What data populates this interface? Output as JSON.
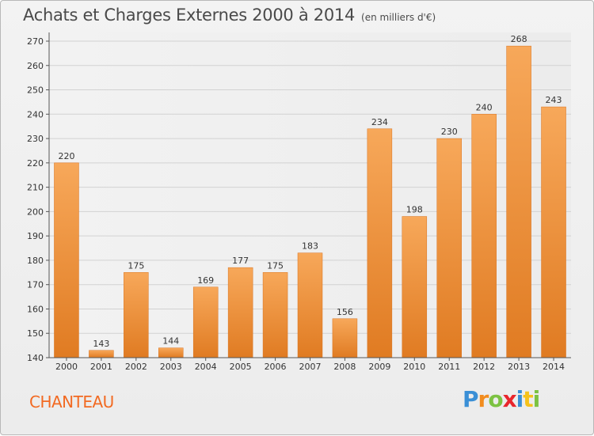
{
  "chart_data": {
    "type": "bar",
    "title": "Achats et Charges Externes 2000 à 2014",
    "unit": "(en milliers d'€)",
    "categories": [
      "2000",
      "2001",
      "2002",
      "2003",
      "2004",
      "2005",
      "2006",
      "2007",
      "2008",
      "2009",
      "2010",
      "2011",
      "2012",
      "2013",
      "2014"
    ],
    "values": [
      220,
      143,
      175,
      144,
      169,
      177,
      175,
      183,
      156,
      234,
      198,
      230,
      240,
      268,
      243
    ],
    "ylim": [
      140,
      270
    ],
    "yticks": [
      140,
      150,
      160,
      170,
      180,
      190,
      200,
      210,
      220,
      230,
      240,
      250,
      260,
      270
    ],
    "grid": true,
    "bar_color_top": "#f7a85a",
    "bar_color_bottom": "#e07b22"
  },
  "commune": "CHANTEAU",
  "logo": {
    "letters": [
      {
        "ch": "P",
        "color": "#3a8fd6"
      },
      {
        "ch": "r",
        "color": "#f28c1e"
      },
      {
        "ch": "o",
        "color": "#7cc242"
      },
      {
        "ch": "x",
        "color": "#e8262d"
      },
      {
        "ch": "i",
        "color": "#3a8fd6"
      },
      {
        "ch": "t",
        "color": "#f6c21c"
      },
      {
        "ch": "i",
        "color": "#7cc242"
      }
    ]
  }
}
